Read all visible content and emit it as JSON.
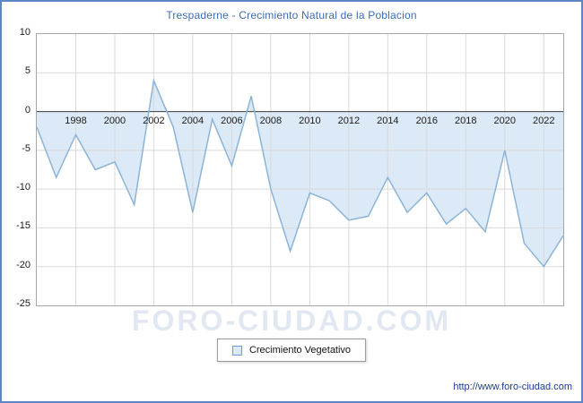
{
  "title": "Trespaderne - Crecimiento Natural de la Poblacion",
  "watermark": "FORO-CIUDAD.COM",
  "legend": {
    "label": "Crecimiento Vegetativo"
  },
  "footer": {
    "url": "http://www.foro-ciudad.com"
  },
  "colors": {
    "frame_border": "#5e86c4",
    "title": "#3f6cb5",
    "line": "#8cb4d8",
    "fill": "#dce9f6",
    "grid": "#d9d9d9",
    "zero_line": "#3c3c3c",
    "plot_border": "#a6a6a6",
    "tick_text": "#1c1c1c",
    "watermark": "#e2e8f2",
    "footer_text": "#1c3e94"
  },
  "chart_data": {
    "type": "area",
    "title": "Trespaderne - Crecimiento Natural de la Poblacion",
    "x": [
      1996,
      1997,
      1998,
      1999,
      2000,
      2001,
      2002,
      2003,
      2004,
      2005,
      2006,
      2007,
      2008,
      2009,
      2010,
      2011,
      2012,
      2013,
      2014,
      2015,
      2016,
      2017,
      2018,
      2019,
      2020,
      2021,
      2022,
      2023
    ],
    "series": [
      {
        "name": "Crecimiento Vegetativo",
        "values": [
          -2,
          -8.5,
          -3,
          -7.5,
          -6.5,
          -12,
          4,
          -2,
          -13,
          -1,
          -7,
          2,
          -10,
          -18,
          -10.5,
          -11.5,
          -14,
          -13.5,
          -8.5,
          -13,
          -10.5,
          -14.5,
          -12.5,
          -15.5,
          -5,
          -17,
          -20,
          -16
        ]
      }
    ],
    "baseline": 0,
    "ylim": [
      -25,
      10
    ],
    "yticks": [
      10,
      5,
      0,
      -5,
      -10,
      -15,
      -20,
      -25
    ],
    "xticks": [
      1998,
      2000,
      2002,
      2004,
      2006,
      2008,
      2010,
      2012,
      2014,
      2016,
      2018,
      2020,
      2022
    ],
    "grid": true,
    "legend_position": "bottom-center"
  }
}
